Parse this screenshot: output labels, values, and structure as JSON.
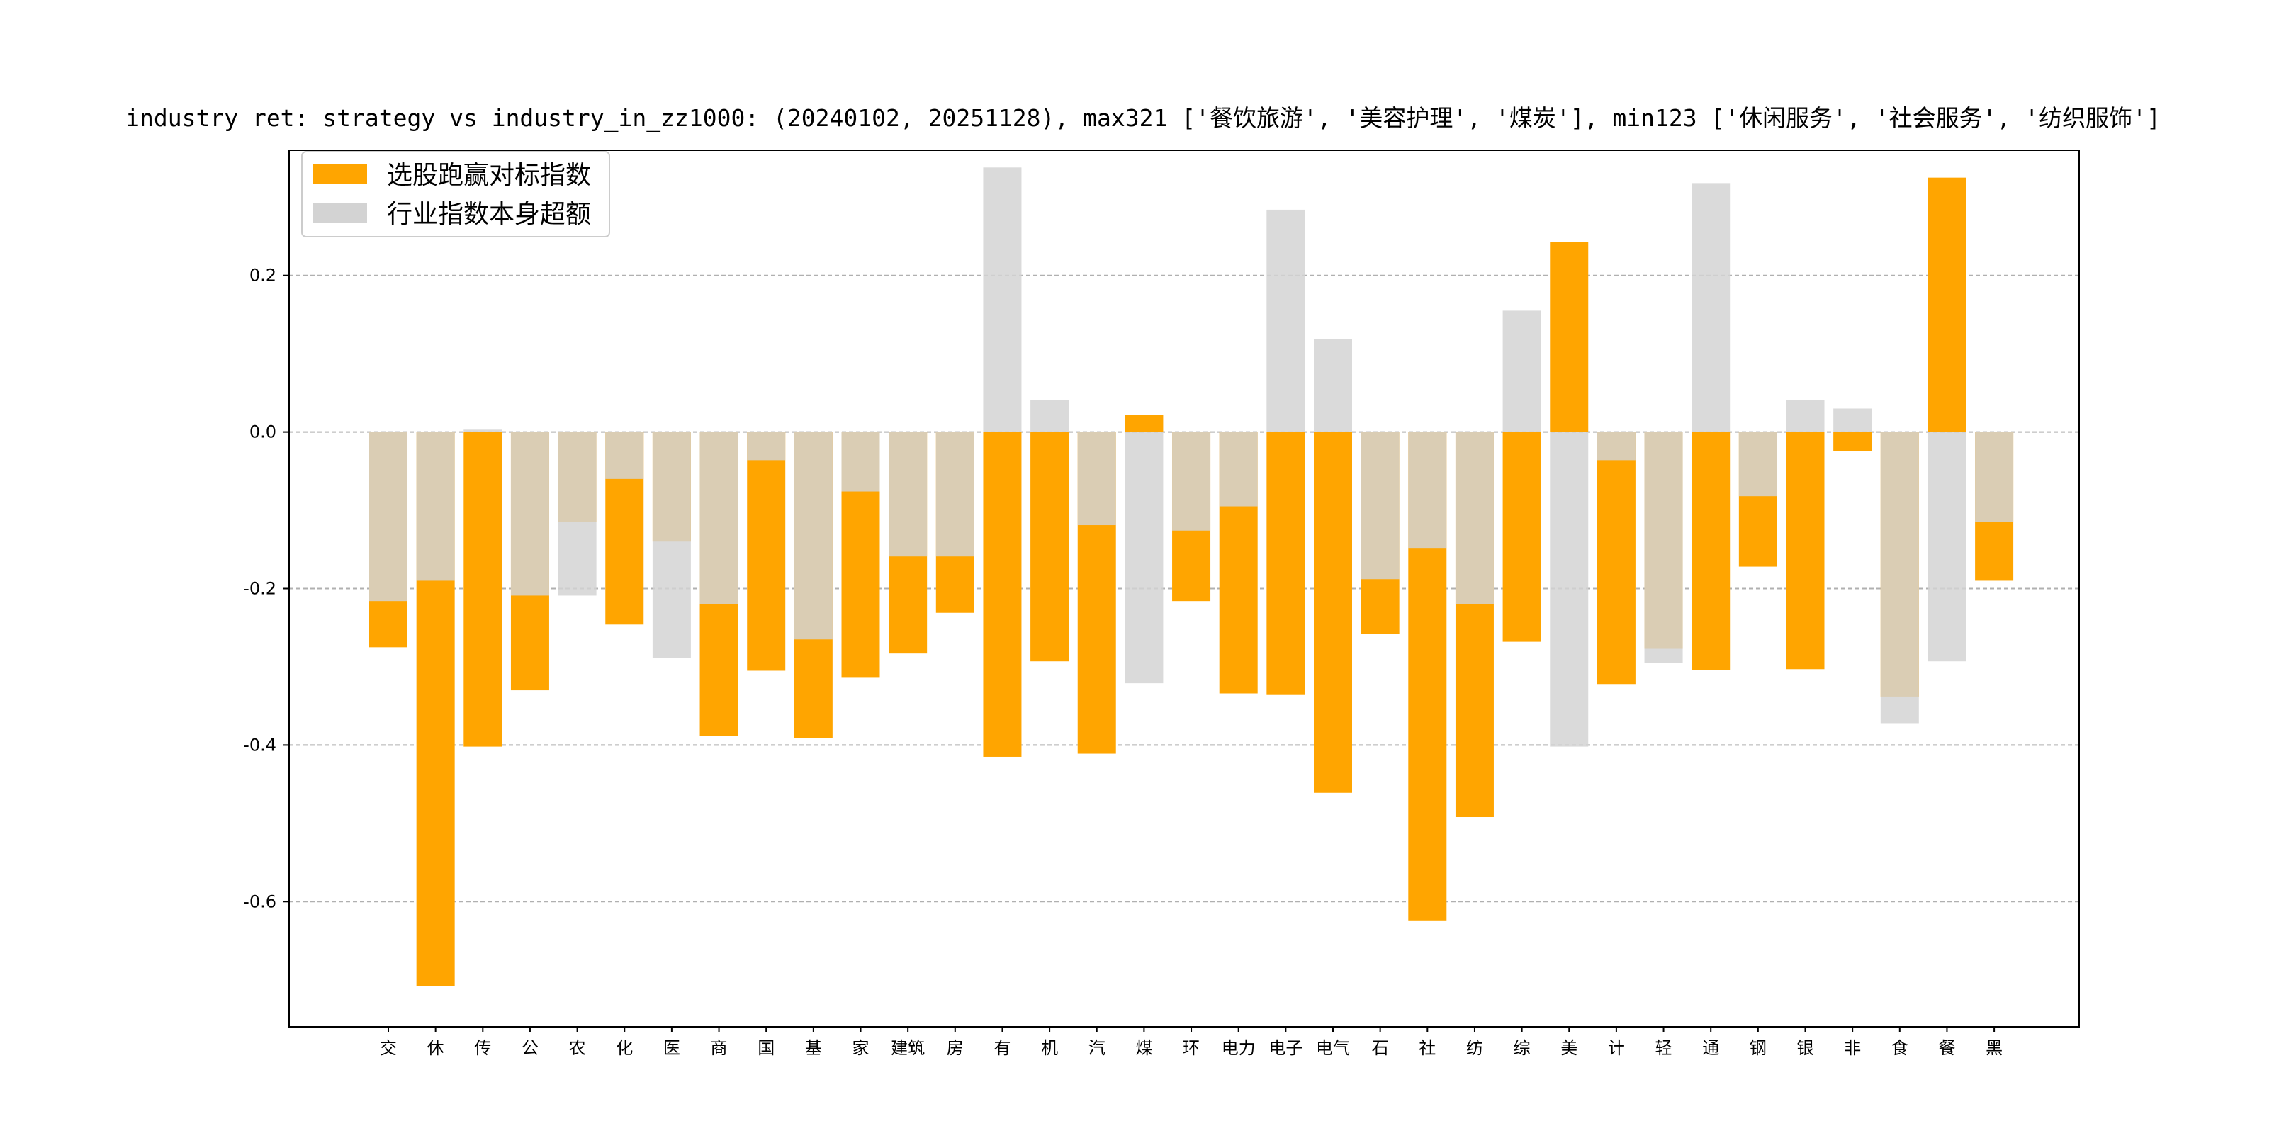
{
  "chart_data": {
    "type": "bar",
    "title": "industry ret: strategy vs industry_in_zz1000: (20240102, 20251128), max321 ['餐饮旅游', '美容护理', '煤炭'], min123 ['休闲服务', '社会服务', '纺织服饰']",
    "xlabel": "",
    "ylabel": "",
    "ylim": [
      -0.76,
      0.36
    ],
    "yticks": [
      0.2,
      0.0,
      -0.2,
      -0.4,
      -0.6
    ],
    "ytick_labels": [
      "0.2",
      "0.0",
      "-0.2",
      "-0.4",
      "-0.6"
    ],
    "grid": "y dashed",
    "legend_position": "top-left",
    "categories": [
      "交",
      "休",
      "传",
      "公",
      "农",
      "化",
      "医",
      "商",
      "国",
      "基",
      "家",
      "建筑",
      "房",
      "有",
      "机",
      "汽",
      "煤",
      "环",
      "电力",
      "电子",
      "电气",
      "石",
      "社",
      "纺",
      "综",
      "美",
      "计",
      "轻",
      "通",
      "钢",
      "银",
      "非",
      "食",
      "餐",
      "黑"
    ],
    "series": [
      {
        "name": "选股跑赢对标指数",
        "color": "#FFA500",
        "values": [
          -0.275,
          -0.708,
          -0.402,
          -0.33,
          -0.115,
          -0.246,
          -0.14,
          -0.388,
          -0.305,
          -0.391,
          -0.314,
          -0.283,
          -0.231,
          -0.415,
          -0.293,
          -0.411,
          0.022,
          -0.216,
          -0.334,
          -0.336,
          -0.461,
          -0.258,
          -0.624,
          -0.492,
          -0.268,
          0.243,
          -0.322,
          -0.277,
          -0.304,
          -0.172,
          -0.303,
          -0.024,
          -0.338,
          0.325,
          -0.19
        ]
      },
      {
        "name": "行业指数本身超额",
        "color": "#D3D3D3",
        "values": [
          -0.216,
          -0.19,
          0.003,
          -0.209,
          -0.209,
          -0.06,
          -0.289,
          -0.22,
          -0.036,
          -0.265,
          -0.076,
          -0.159,
          -0.159,
          0.338,
          0.041,
          -0.119,
          -0.321,
          -0.126,
          -0.095,
          0.284,
          0.119,
          -0.188,
          -0.149,
          -0.22,
          0.155,
          -0.402,
          -0.036,
          -0.295,
          0.318,
          -0.082,
          0.041,
          0.03,
          -0.372,
          -0.293,
          -0.115
        ]
      }
    ]
  }
}
